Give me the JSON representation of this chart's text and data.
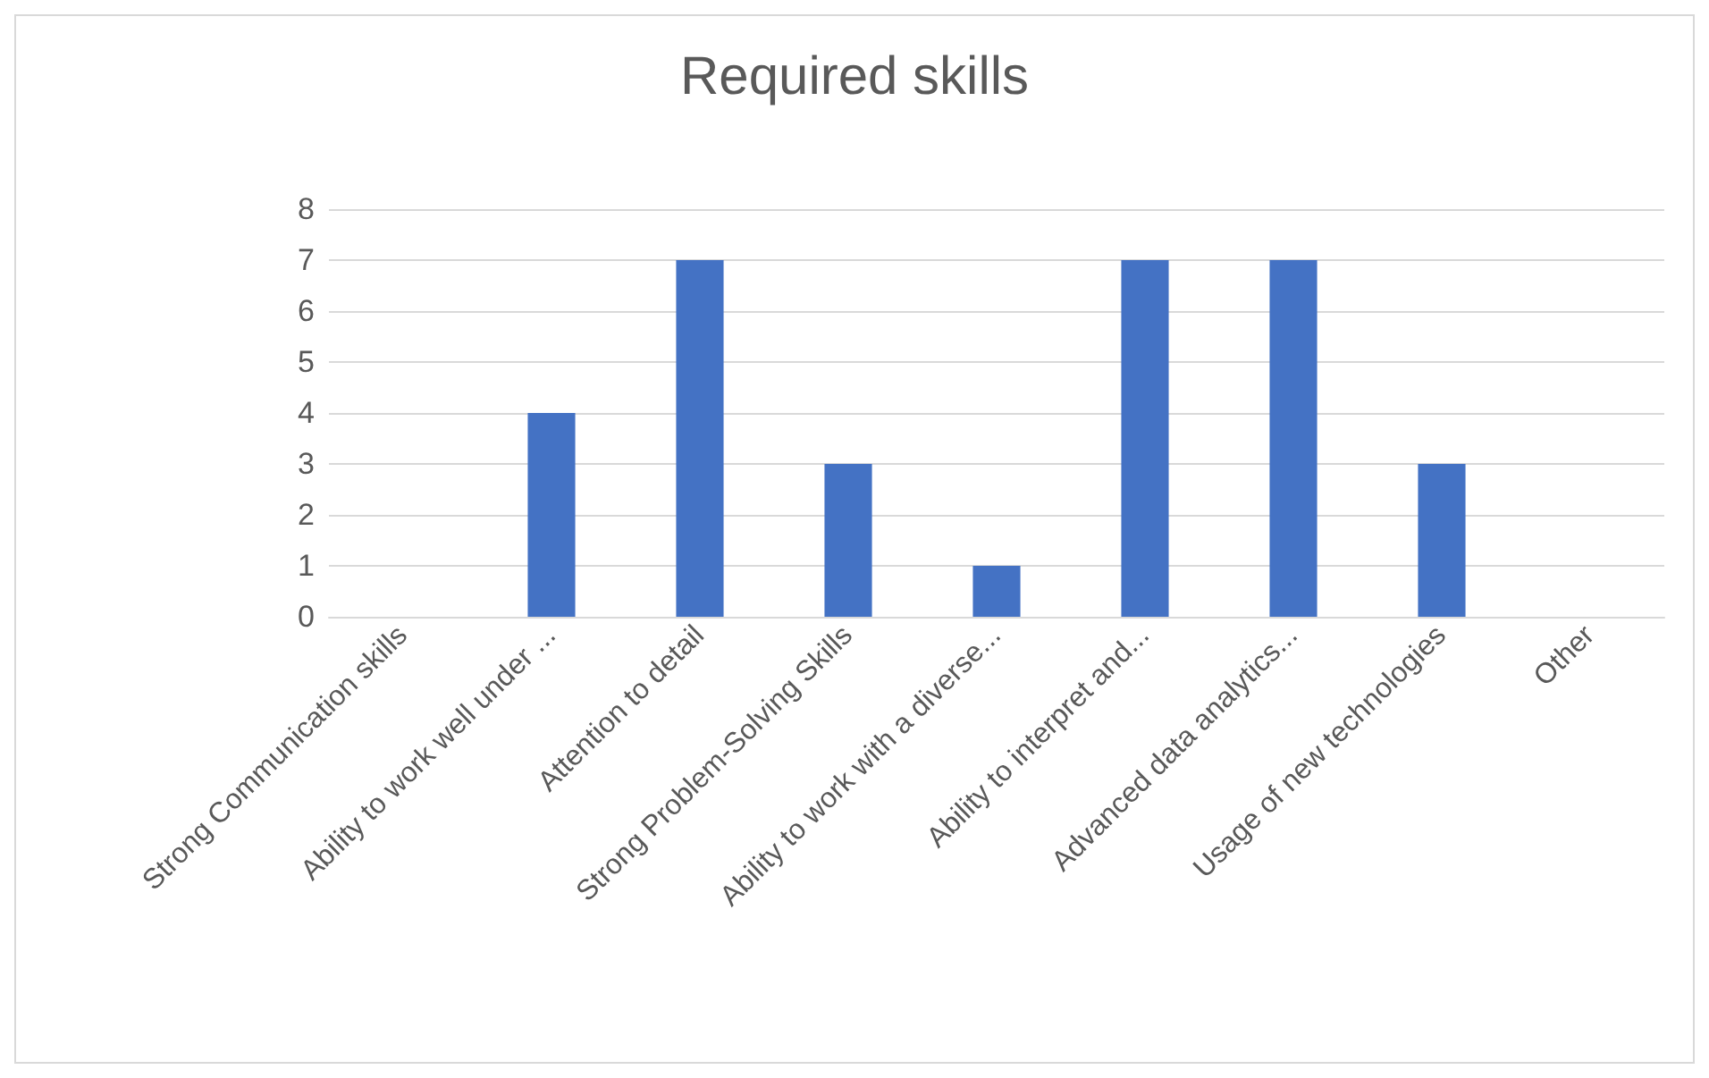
{
  "chart_data": {
    "type": "bar",
    "title": "Required skills",
    "categories": [
      "Strong Communication skills",
      "Ability to work well under ...",
      "Attention to detail",
      "Strong Problem-Solving Skills",
      "Ability to work with a diverse...",
      "Ability to interpret and...",
      "Advanced data analytics...",
      "Usage of new technologies",
      "Other"
    ],
    "values": [
      0,
      4,
      7,
      3,
      1,
      7,
      7,
      3,
      0
    ],
    "color": "#4472c4",
    "ylim": [
      0,
      8
    ],
    "yticks": [
      0,
      1,
      2,
      3,
      4,
      5,
      6,
      7,
      8
    ],
    "grid": "y"
  }
}
